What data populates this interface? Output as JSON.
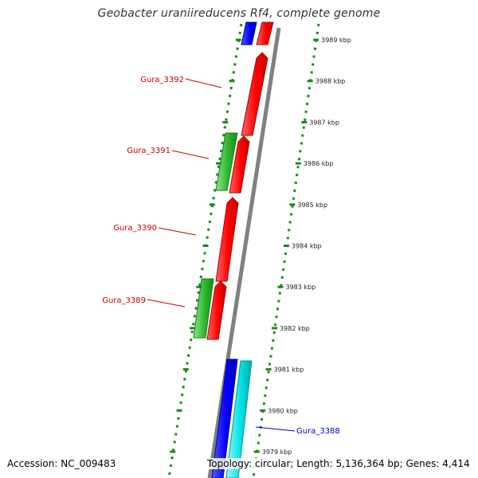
{
  "title": "Geobacter uraniireducens Rf4, complete genome",
  "footer": {
    "accession": "Accession: NC_009483",
    "summary": "Topology: circular; Length: 5,136,364 bp; Genes: 4,414"
  },
  "colors": {
    "reverse_gene": "#ff0000",
    "reverse_outline": "#b00000",
    "forward_gene": "#2eb82e",
    "blue_gene": "#0000ff",
    "cyan_gene": "#00e5e5",
    "tick": "#1a8c1a",
    "backbone": "#808080",
    "label_red": "#cc0000",
    "label_blue": "#0000cc"
  },
  "ticks": [
    {
      "label": "3989 kbp"
    },
    {
      "label": "3988 kbp"
    },
    {
      "label": "3987 kbp"
    },
    {
      "label": "3986 kbp"
    },
    {
      "label": "3985 kbp"
    },
    {
      "label": "3984 kbp"
    },
    {
      "label": "3983 kbp"
    },
    {
      "label": "3982 kbp"
    },
    {
      "label": "3981 kbp"
    },
    {
      "label": "3980 kbp"
    },
    {
      "label": "3979 kbp"
    }
  ],
  "genes": [
    {
      "name": "Gura_3392",
      "strand": "reverse",
      "color": "red"
    },
    {
      "name": "Gura_3391",
      "strand": "forward",
      "color": "green"
    },
    {
      "name": "Gura_3390",
      "strand": "reverse",
      "color": "red"
    },
    {
      "name": "Gura_3389",
      "strand": "forward",
      "color": "green"
    },
    {
      "name": "Gura_3388",
      "strand": "forward",
      "color": "blue"
    }
  ]
}
